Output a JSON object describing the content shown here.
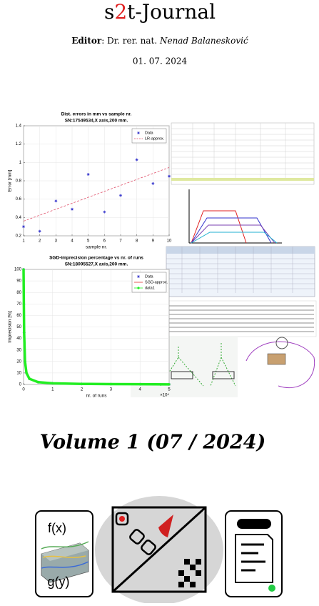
{
  "header": {
    "title_prefix": "s",
    "title_digit": "2",
    "title_suffix": "t-Journal",
    "editor_label": "Editor",
    "editor_text": ": Dr. rer. nat. ",
    "editor_name": "Nenad Balanesković",
    "date": "01. 07. 2024"
  },
  "chart_data": [
    {
      "type": "scatter",
      "title": "Dist. errors in mm vs sample nr.",
      "subtitle": "SN:17549534,X axis,200 mm.",
      "xlabel": "sample nr.",
      "ylabel": "Error [mm]",
      "x": [
        1,
        2,
        3,
        4,
        5,
        6,
        7,
        8,
        9,
        10
      ],
      "xlim": [
        1,
        10
      ],
      "xticks": [
        1,
        2,
        3,
        4,
        5,
        6,
        7,
        8,
        9,
        10
      ],
      "ylim": [
        0.2,
        1.4
      ],
      "yticks": [
        0.2,
        0.4,
        0.6,
        0.8,
        1,
        1.2,
        1.4
      ],
      "grid": true,
      "legend": "upper right",
      "series": [
        {
          "name": "Data",
          "color": "#3333cc",
          "marker": "star",
          "line": "none",
          "values": [
            0.3,
            0.25,
            0.58,
            0.49,
            0.87,
            0.46,
            0.64,
            1.03,
            0.77,
            0.85
          ]
        },
        {
          "name": "LR-approx.",
          "color": "#e0506a",
          "marker": "none",
          "line": "dashed",
          "values": [
            0.36,
            0.425,
            0.49,
            0.555,
            0.62,
            0.685,
            0.75,
            0.815,
            0.88,
            0.945
          ]
        }
      ]
    },
    {
      "type": "scatter",
      "title": "SGD-imprecision percentage vs nr. of runs",
      "subtitle": "SN:18095527,X axis,200 mm.",
      "xlabel": "nr. of runs",
      "ylabel": "Imprecision [%]",
      "x_offset_label": "×10⁴",
      "x": [
        1,
        100,
        200,
        500,
        1000,
        2000,
        5000,
        10000,
        20000,
        30000,
        40000,
        50000
      ],
      "xlim": [
        0,
        50000
      ],
      "xticks": [
        {
          "value": 0,
          "label": "0"
        },
        {
          "value": 10000,
          "label": "1"
        },
        {
          "value": 20000,
          "label": "2"
        },
        {
          "value": 30000,
          "label": "3"
        },
        {
          "value": 40000,
          "label": "4"
        },
        {
          "value": 50000,
          "label": "5"
        }
      ],
      "ylim": [
        0,
        100
      ],
      "yticks": [
        0,
        10,
        20,
        30,
        40,
        50,
        60,
        70,
        80,
        90,
        100
      ],
      "grid": true,
      "legend": "upper right",
      "series": [
        {
          "name": "Data",
          "color": "#3333cc",
          "marker": "star",
          "line": "none",
          "values": [
            100,
            70,
            45,
            20,
            10,
            5,
            2,
            1,
            0.5,
            0.3,
            0.2,
            0.1
          ]
        },
        {
          "name": "SGD-approx.",
          "color": "#e03030",
          "marker": "none",
          "line": "solid",
          "values": [
            100,
            70,
            45,
            20,
            10,
            5,
            2,
            1,
            0.5,
            0.3,
            0.2,
            0.1
          ]
        },
        {
          "name": "data1",
          "color": "#22ee22",
          "marker": "dot",
          "line": "thick",
          "values": [
            100,
            70,
            45,
            20,
            10,
            5,
            2,
            1,
            0.5,
            0.3,
            0.2,
            0.1
          ]
        }
      ]
    }
  ],
  "volume": "Volume 1 (07 / 2024)",
  "icons": {
    "f_label": "f(x)",
    "g_label": "g(y)"
  }
}
